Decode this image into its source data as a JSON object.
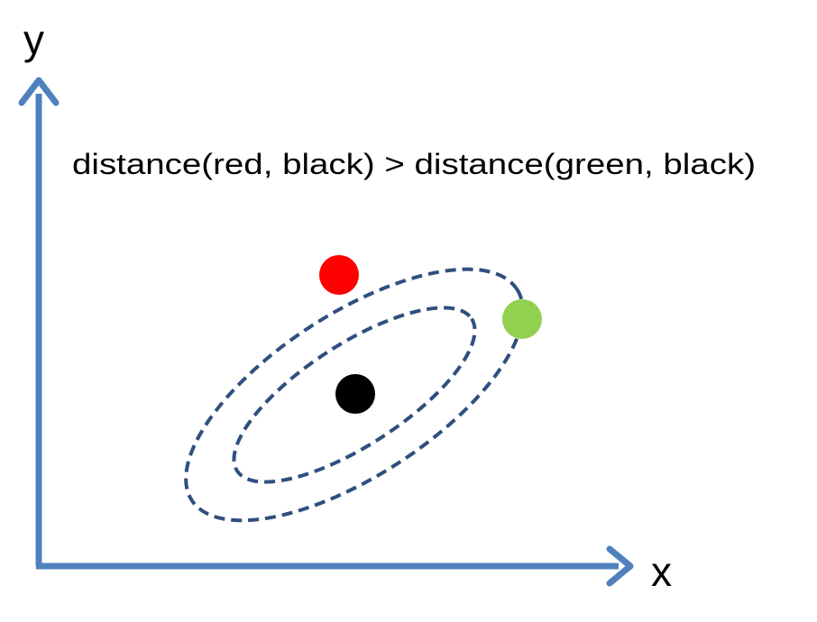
{
  "diagram": {
    "axis_x_label": "x",
    "axis_y_label": "y",
    "caption": "distance(red, black) > distance(green, black)",
    "axis_color": "#4f81bd",
    "contour_color": "#2f4f7f",
    "points": {
      "red": "#ff0000",
      "green": "#92d050",
      "black": "#000000"
    }
  }
}
